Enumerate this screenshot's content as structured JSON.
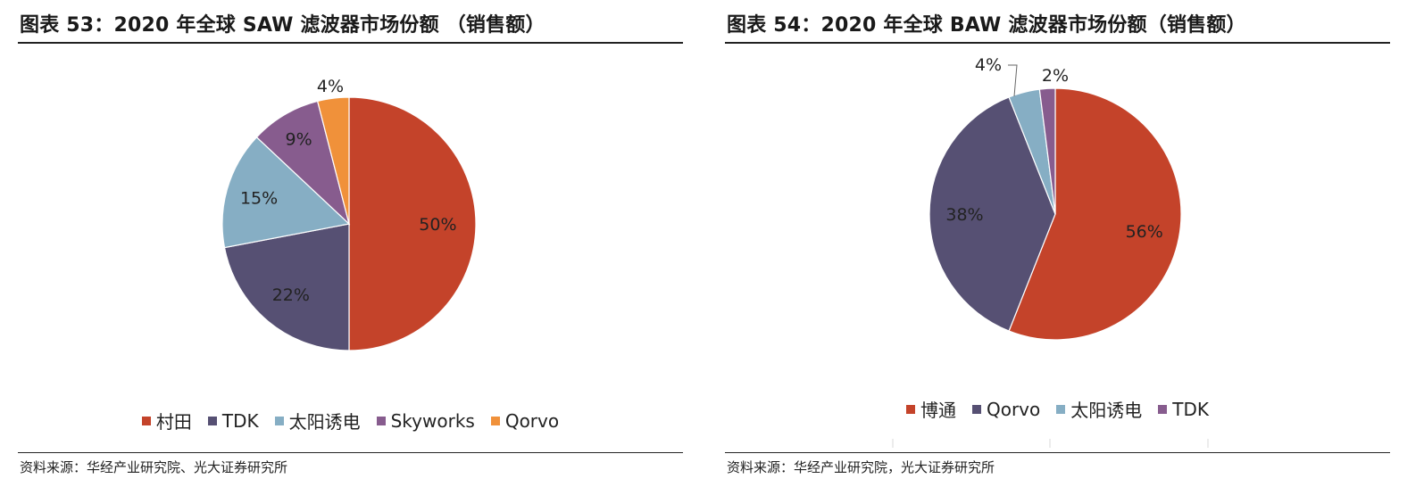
{
  "colors": {
    "red": "#C4432A",
    "navy": "#565073",
    "light_blue": "#86AEC4",
    "purple": "#875C8E",
    "orange": "#F0913A"
  },
  "left_panel": {
    "title": "图表 53：2020 年全球 SAW 滤波器市场份额 （销售额）",
    "source": "资料来源：华经产业研究院、光大证券研究所"
  },
  "right_panel": {
    "title": "图表 54：2020 年全球 BAW 滤波器市场份额（销售额）",
    "source": "资料来源：华经产业研究院，光大证券研究所"
  },
  "chart_data": [
    {
      "type": "pie",
      "title": "2020 年全球 SAW 滤波器市场份额 （销售额）",
      "legend_position": "bottom",
      "slices": [
        {
          "name": "村田",
          "value": 50,
          "label": "50%",
          "color": "#C4432A"
        },
        {
          "name": "TDK",
          "value": 22,
          "label": "22%",
          "color": "#565073"
        },
        {
          "name": "太阳诱电",
          "value": 15,
          "label": "15%",
          "color": "#86AEC4"
        },
        {
          "name": "Skyworks",
          "value": 9,
          "label": "9%",
          "color": "#875C8E"
        },
        {
          "name": "Qorvo",
          "value": 4,
          "label": "4%",
          "color": "#F0913A"
        }
      ]
    },
    {
      "type": "pie",
      "title": "2020 年全球 BAW 滤波器市场份额（销售额）",
      "legend_position": "bottom",
      "slices": [
        {
          "name": "博通",
          "value": 56,
          "label": "56%",
          "color": "#C4432A"
        },
        {
          "name": "Qorvo",
          "value": 38,
          "label": "38%",
          "color": "#565073"
        },
        {
          "name": "太阳诱电",
          "value": 4,
          "label": "4%",
          "color": "#86AEC4"
        },
        {
          "name": "TDK",
          "value": 2,
          "label": "2%",
          "color": "#875C8E"
        }
      ]
    }
  ]
}
